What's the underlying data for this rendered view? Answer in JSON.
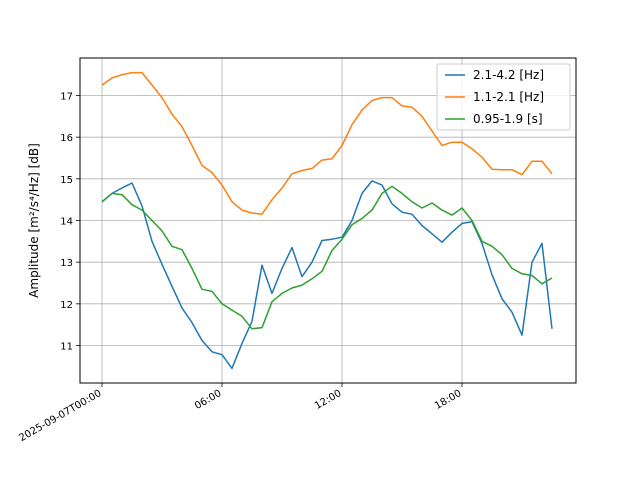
{
  "chart_data": {
    "type": "line",
    "title": "",
    "xlabel": "",
    "ylabel": "Amplitude [m²/s⁴/Hz] [dB]",
    "ylim": [
      10.1,
      17.9
    ],
    "grid": true,
    "legend_position": "top-right",
    "x_axis": {
      "unit": "hours since 2025-09-07T00:00",
      "range": [
        -1.1,
        23.7
      ],
      "ticks": [
        {
          "x": 0,
          "label": "2025-09-07T00:00"
        },
        {
          "x": 6,
          "label": "06:00"
        },
        {
          "x": 12,
          "label": "12:00"
        },
        {
          "x": 18,
          "label": "18:00"
        }
      ]
    },
    "y_ticks": [
      11,
      12,
      13,
      14,
      15,
      16,
      17
    ],
    "x": [
      0,
      0.5,
      1,
      1.5,
      2,
      2.5,
      3,
      3.5,
      4,
      4.5,
      5,
      5.5,
      6,
      6.5,
      7,
      7.5,
      8,
      8.5,
      9,
      9.5,
      10,
      10.5,
      11,
      11.5,
      12,
      12.5,
      13,
      13.5,
      14,
      14.5,
      15,
      15.5,
      16,
      16.5,
      17,
      17.5,
      18,
      18.5,
      19,
      19.5,
      20,
      20.5,
      21,
      21.5,
      22,
      22.5
    ],
    "series": [
      {
        "name": "2.1-4.2 [Hz]",
        "color": "#1f77b4",
        "values": [
          14.45,
          14.65,
          14.78,
          14.9,
          14.35,
          13.5,
          12.95,
          12.42,
          11.9,
          11.55,
          11.12,
          10.85,
          10.78,
          10.45,
          11.05,
          11.58,
          12.93,
          12.25,
          12.85,
          13.35,
          12.65,
          13.0,
          13.52,
          13.55,
          13.6,
          14.0,
          14.65,
          14.95,
          14.85,
          14.4,
          14.2,
          14.15,
          13.88,
          13.68,
          13.48,
          13.72,
          13.93,
          13.97,
          13.45,
          12.7,
          12.12,
          11.8,
          11.25,
          13.0,
          13.45,
          11.4
        ]
      },
      {
        "name": "1.1-2.1 [Hz]",
        "color": "#ff7f0e",
        "values": [
          17.25,
          17.42,
          17.5,
          17.55,
          17.55,
          17.25,
          16.95,
          16.55,
          16.25,
          15.8,
          15.32,
          15.15,
          14.85,
          14.45,
          14.25,
          14.18,
          14.15,
          14.5,
          14.78,
          15.12,
          15.2,
          15.25,
          15.45,
          15.48,
          15.8,
          16.3,
          16.65,
          16.88,
          16.95,
          16.95,
          16.75,
          16.72,
          16.5,
          16.15,
          15.8,
          15.88,
          15.88,
          15.72,
          15.52,
          15.23,
          15.22,
          15.22,
          15.1,
          15.42,
          15.42,
          15.12
        ]
      },
      {
        "name": "0.95-1.9 [s]",
        "color": "#2ca02c",
        "values": [
          14.45,
          14.65,
          14.62,
          14.38,
          14.25,
          14.0,
          13.75,
          13.38,
          13.3,
          12.85,
          12.35,
          12.3,
          12.0,
          11.85,
          11.7,
          11.4,
          11.43,
          12.05,
          12.25,
          12.38,
          12.45,
          12.6,
          12.78,
          13.28,
          13.55,
          13.9,
          14.05,
          14.25,
          14.65,
          14.82,
          14.65,
          14.45,
          14.3,
          14.42,
          14.25,
          14.13,
          14.3,
          14.0,
          13.5,
          13.38,
          13.18,
          12.85,
          12.72,
          12.68,
          12.48,
          12.62
        ]
      }
    ]
  }
}
